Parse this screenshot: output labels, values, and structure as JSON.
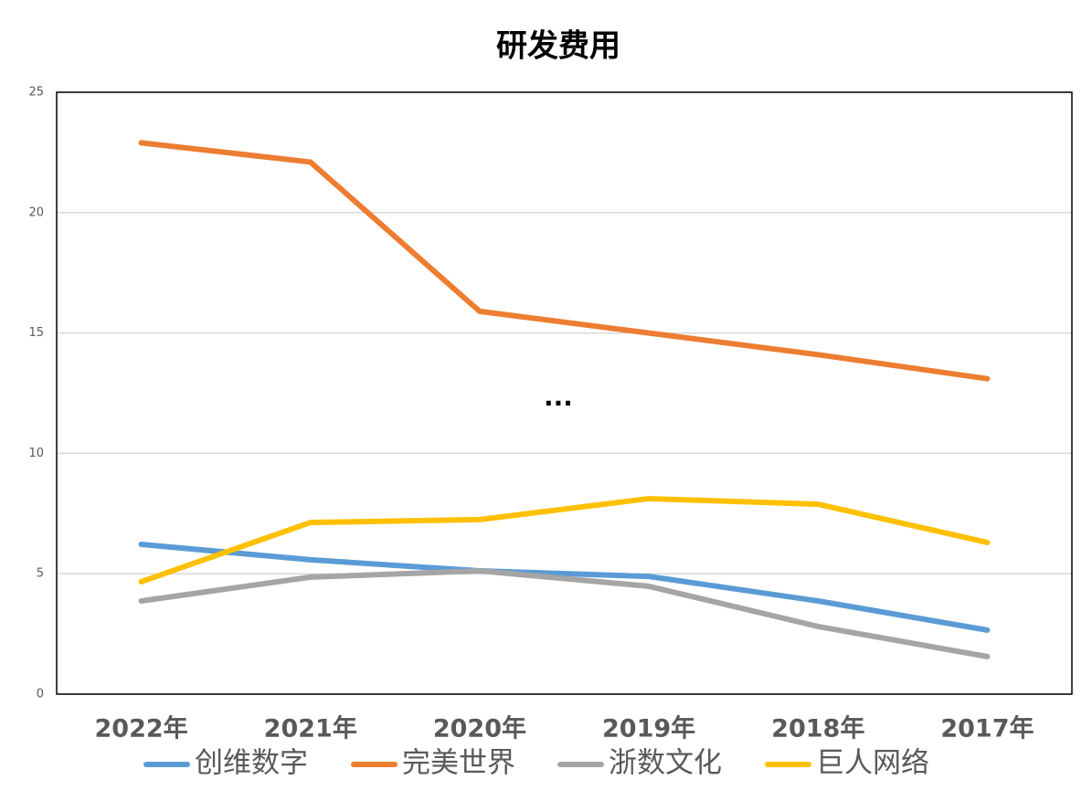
{
  "chart_data": {
    "type": "line",
    "title": "研发费用",
    "annotation": "...",
    "categories": [
      "2022年",
      "2021年",
      "2020年",
      "2019年",
      "2018年",
      "2017年"
    ],
    "series": [
      {
        "name": "创维数字",
        "color": "#5b9bd5",
        "values": [
          6.22,
          5.58,
          5.12,
          4.89,
          3.87,
          2.66
        ]
      },
      {
        "name": "完美世界",
        "color": "#ed7d31",
        "values": [
          22.9,
          22.1,
          15.9,
          15.0,
          14.1,
          13.1
        ]
      },
      {
        "name": "浙数文化",
        "color": "#a5a5a5",
        "values": [
          3.87,
          4.86,
          5.12,
          4.48,
          2.81,
          1.56
        ]
      },
      {
        "name": "巨人网络",
        "color": "#ffc000",
        "values": [
          4.67,
          7.13,
          7.25,
          8.12,
          7.89,
          6.3
        ]
      }
    ],
    "ylim": [
      0,
      25
    ],
    "yticks": [
      0,
      5,
      10,
      15,
      20,
      25
    ],
    "grid": true,
    "legend": "bottom"
  }
}
